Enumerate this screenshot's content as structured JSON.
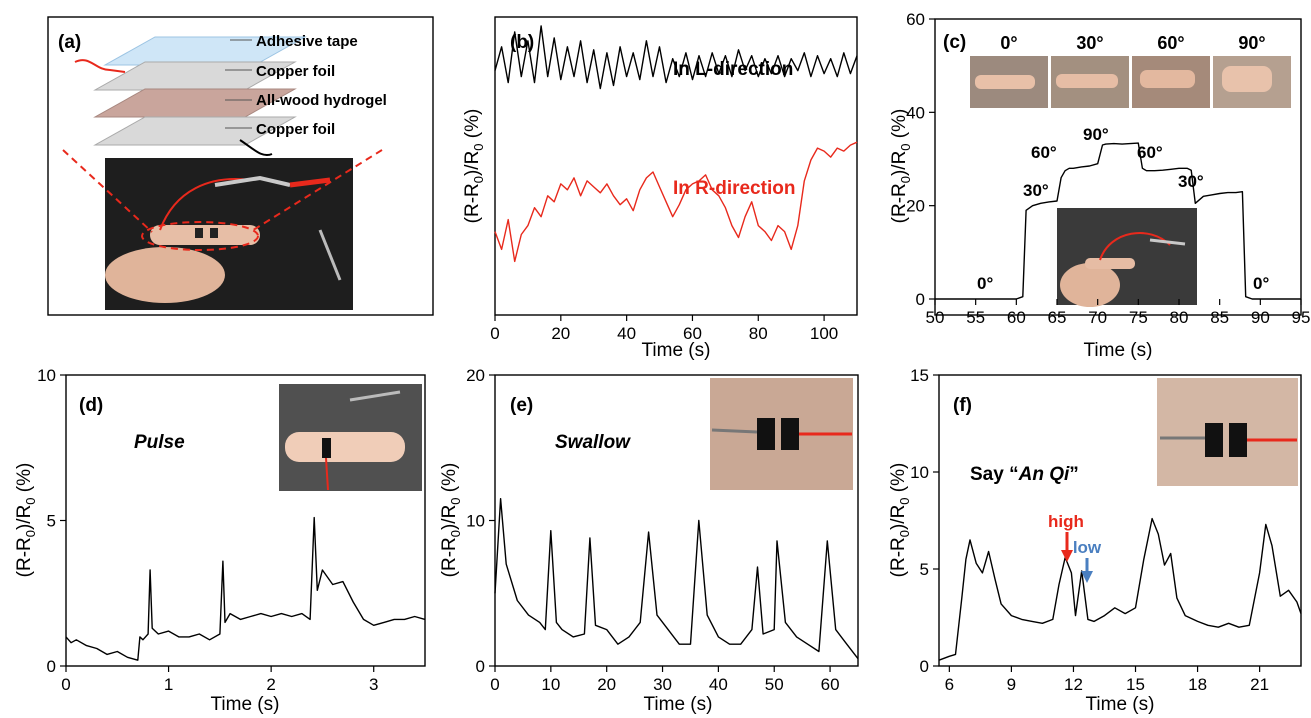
{
  "chart_data": [
    {
      "panel": "(a)",
      "type": "diagram",
      "layers": [
        "Adhesive tape",
        "Copper foil",
        "All-wood hydrogel",
        "Copper foil"
      ]
    },
    {
      "panel": "(b)",
      "type": "line",
      "xlabel": "Time (s)",
      "ylabel": "(R-R0)/R0 (%)",
      "xlim": [
        0,
        110
      ],
      "xticks": [
        0,
        20,
        40,
        60,
        80,
        100
      ],
      "yticks_labeled": false,
      "series": [
        {
          "name": "In L-direction",
          "color": "#000000",
          "x": [
            0,
            2,
            4,
            6,
            8,
            10,
            12,
            14,
            16,
            18,
            20,
            22,
            24,
            26,
            28,
            30,
            32,
            34,
            36,
            38,
            40,
            42,
            44,
            46,
            48,
            50,
            52,
            54,
            56,
            58,
            60,
            62,
            64,
            66,
            68,
            70,
            72,
            74,
            76,
            78,
            80,
            82,
            84,
            86,
            88,
            90,
            92,
            94,
            96,
            98,
            100,
            102,
            104,
            106,
            108,
            110
          ],
          "y": [
            0.82,
            0.9,
            0.78,
            0.95,
            0.8,
            0.92,
            0.78,
            0.97,
            0.8,
            0.93,
            0.79,
            0.9,
            0.8,
            0.92,
            0.78,
            0.89,
            0.76,
            0.88,
            0.77,
            0.9,
            0.8,
            0.88,
            0.79,
            0.92,
            0.8,
            0.9,
            0.78,
            0.86,
            0.8,
            0.88,
            0.79,
            0.87,
            0.8,
            0.88,
            0.81,
            0.87,
            0.8,
            0.89,
            0.82,
            0.87,
            0.8,
            0.86,
            0.81,
            0.87,
            0.8,
            0.86,
            0.82,
            0.88,
            0.8,
            0.87,
            0.81,
            0.86,
            0.8,
            0.88,
            0.81,
            0.87
          ]
        },
        {
          "name": "In R-direction",
          "color": "#e8291c",
          "x": [
            0,
            2,
            4,
            6,
            8,
            10,
            12,
            14,
            16,
            18,
            20,
            22,
            24,
            26,
            28,
            30,
            32,
            34,
            36,
            38,
            40,
            42,
            44,
            46,
            48,
            50,
            52,
            54,
            56,
            58,
            60,
            62,
            64,
            66,
            68,
            70,
            72,
            74,
            76,
            78,
            80,
            82,
            84,
            86,
            88,
            90,
            92,
            94,
            96,
            98,
            100,
            102,
            104,
            106,
            108,
            110
          ],
          "y": [
            0.28,
            0.22,
            0.32,
            0.18,
            0.27,
            0.3,
            0.36,
            0.33,
            0.4,
            0.38,
            0.44,
            0.42,
            0.46,
            0.4,
            0.45,
            0.43,
            0.41,
            0.44,
            0.4,
            0.37,
            0.39,
            0.35,
            0.42,
            0.46,
            0.48,
            0.43,
            0.38,
            0.33,
            0.37,
            0.42,
            0.44,
            0.45,
            0.47,
            0.42,
            0.4,
            0.36,
            0.3,
            0.26,
            0.33,
            0.38,
            0.3,
            0.28,
            0.25,
            0.3,
            0.28,
            0.22,
            0.3,
            0.45,
            0.52,
            0.56,
            0.55,
            0.53,
            0.56,
            0.55,
            0.57,
            0.58
          ]
        }
      ]
    },
    {
      "panel": "(c)",
      "type": "line",
      "xlabel": "Time (s)",
      "ylabel": "(R-R0)/R0 (%)",
      "xlim": [
        50,
        95
      ],
      "ylim": [
        0,
        60
      ],
      "xticks": [
        50,
        55,
        60,
        65,
        70,
        75,
        80,
        85,
        90,
        95
      ],
      "yticks": [
        0,
        20,
        40,
        60
      ],
      "inset_angles": [
        "0°",
        "30°",
        "60°",
        "90°"
      ],
      "annotations": [
        "0°",
        "30°",
        "60°",
        "90°",
        "60°",
        "30°",
        "0°"
      ],
      "series": [
        {
          "name": "",
          "color": "#000000",
          "x": [
            50,
            60,
            60.8,
            61.2,
            62,
            63,
            64,
            65,
            65.5,
            66,
            66.5,
            67,
            68,
            69,
            70,
            70.6,
            71,
            72,
            73,
            74,
            75,
            75.5,
            76,
            77,
            78,
            79,
            80,
            81,
            81.5,
            82,
            83,
            84,
            85,
            86,
            87,
            87.8,
            88.2,
            89,
            90,
            92,
            95
          ],
          "y": [
            0,
            0,
            0.5,
            19,
            20,
            20.5,
            20.8,
            21,
            26,
            27.5,
            28,
            28,
            28.3,
            28.5,
            29,
            33,
            33.2,
            33.3,
            33.2,
            33.3,
            33.4,
            28,
            27.5,
            27.5,
            27.6,
            27.8,
            28,
            28,
            27.6,
            20.5,
            22,
            22.3,
            22.6,
            22.8,
            22.8,
            23,
            0.5,
            0,
            0,
            0,
            0
          ]
        }
      ]
    },
    {
      "panel": "(d)",
      "type": "line",
      "label": "Pulse",
      "xlabel": "Time (s)",
      "ylabel": "(R-R0)/R0 (%)",
      "xlim": [
        0,
        3.5
      ],
      "ylim": [
        0,
        10
      ],
      "xticks": [
        0,
        1,
        2,
        3
      ],
      "yticks": [
        0,
        5,
        10
      ],
      "series": [
        {
          "name": "",
          "color": "#000000",
          "x": [
            0,
            0.05,
            0.1,
            0.2,
            0.3,
            0.4,
            0.5,
            0.6,
            0.7,
            0.72,
            0.75,
            0.8,
            0.82,
            0.84,
            0.9,
            1.0,
            1.1,
            1.2,
            1.3,
            1.4,
            1.5,
            1.53,
            1.55,
            1.6,
            1.7,
            1.8,
            1.9,
            2.0,
            2.1,
            2.2,
            2.3,
            2.38,
            2.42,
            2.45,
            2.5,
            2.6,
            2.7,
            2.8,
            2.9,
            3.0,
            3.1,
            3.2,
            3.3,
            3.4,
            3.5
          ],
          "y": [
            1.0,
            0.8,
            0.9,
            0.7,
            0.6,
            0.4,
            0.5,
            0.3,
            0.2,
            1.0,
            0.9,
            1.1,
            3.3,
            1.3,
            1.1,
            1.2,
            1.0,
            1.0,
            1.1,
            0.9,
            1.1,
            3.6,
            1.5,
            1.8,
            1.6,
            1.7,
            1.8,
            1.7,
            1.8,
            1.7,
            1.8,
            1.6,
            5.1,
            2.6,
            3.3,
            2.8,
            2.9,
            2.2,
            1.6,
            1.4,
            1.5,
            1.6,
            1.6,
            1.7,
            1.6
          ]
        }
      ]
    },
    {
      "panel": "(e)",
      "type": "line",
      "label": "Swallow",
      "xlabel": "Time (s)",
      "ylabel": "(R-R0)/R0 (%)",
      "xlim": [
        0,
        65
      ],
      "ylim": [
        0,
        20
      ],
      "xticks": [
        0,
        10,
        20,
        30,
        40,
        50,
        60
      ],
      "yticks": [
        0,
        10,
        20
      ],
      "series": [
        {
          "name": "",
          "color": "#000000",
          "x": [
            0,
            1,
            2,
            4,
            6,
            8,
            9,
            10,
            11,
            12,
            14,
            16,
            17,
            18,
            20,
            22,
            24,
            26,
            27.5,
            29,
            31,
            33,
            35,
            36.5,
            38,
            40,
            42,
            44,
            46,
            47,
            48,
            50,
            50.5,
            52,
            54,
            56,
            58,
            59.5,
            61,
            63,
            65
          ],
          "y": [
            5,
            11.5,
            7,
            4.5,
            3.5,
            3,
            2.5,
            9.3,
            3,
            2.5,
            2,
            2.2,
            8.8,
            2.8,
            2.5,
            1.5,
            2,
            3,
            9.2,
            3.5,
            2.5,
            1.5,
            1.5,
            10,
            3.5,
            2,
            1.5,
            1.5,
            2.5,
            6.8,
            2.2,
            2.5,
            8.6,
            3,
            2,
            1.5,
            1,
            8.6,
            2.5,
            1.5,
            0.5
          ]
        }
      ]
    },
    {
      "panel": "(f)",
      "type": "line",
      "label": "Say “An Qi”",
      "xlabel": "Time (s)",
      "ylabel": "(R-R0)/R0 (%)",
      "xlim": [
        5.5,
        23
      ],
      "ylim": [
        0,
        15
      ],
      "xticks": [
        6,
        9,
        12,
        15,
        18,
        21
      ],
      "yticks": [
        0,
        5,
        10,
        15
      ],
      "annotations": [
        "high",
        "low"
      ],
      "annotation_colors": {
        "high": "#e8291c",
        "low": "#4a7fc0"
      },
      "series": [
        {
          "name": "",
          "color": "#000000",
          "x": [
            5.5,
            6.0,
            6.3,
            6.6,
            6.8,
            7.0,
            7.3,
            7.6,
            7.9,
            8.2,
            8.5,
            9,
            9.5,
            10,
            10.5,
            11,
            11.3,
            11.6,
            11.9,
            12.1,
            12.4,
            12.7,
            13,
            13.5,
            14,
            14.5,
            15,
            15.4,
            15.8,
            16.1,
            16.4,
            16.7,
            17,
            17.4,
            18,
            18.5,
            19,
            19.5,
            20,
            20.5,
            21,
            21.3,
            21.6,
            22,
            22.4,
            22.8,
            23
          ],
          "y": [
            0.3,
            0.5,
            0.6,
            3.5,
            5.5,
            6.5,
            5.3,
            4.8,
            5.9,
            4.5,
            3.2,
            2.6,
            2.4,
            2.3,
            2.2,
            2.4,
            4.2,
            5.6,
            4.8,
            2.6,
            4.9,
            2.4,
            2.3,
            2.6,
            3.0,
            2.7,
            3.0,
            5.5,
            7.6,
            6.8,
            5.2,
            5.8,
            3.5,
            2.6,
            2.3,
            2.1,
            2.0,
            2.2,
            2.0,
            2.1,
            4.8,
            7.3,
            6.2,
            3.6,
            3.9,
            3.3,
            2.7
          ]
        }
      ]
    }
  ]
}
